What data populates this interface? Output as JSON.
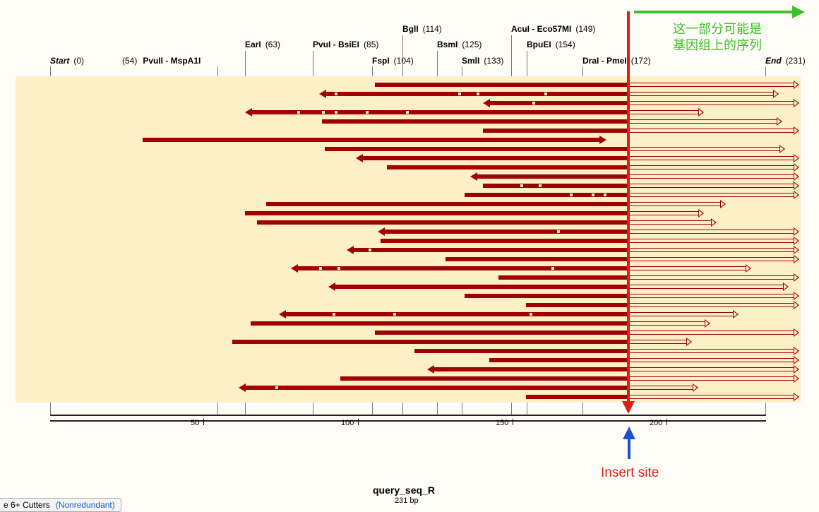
{
  "enzymes": {
    "start": {
      "name": "Start",
      "pos": "(0)"
    },
    "pvuii": {
      "pre": "(54)",
      "name": "PvuII - MspA1I"
    },
    "eari": {
      "name": "EarI",
      "pos": "(63)"
    },
    "pvui": {
      "name": "PvuI - BsiEI",
      "pos": "(85)"
    },
    "fspi": {
      "name": "FspI",
      "pos": "(104)"
    },
    "bgli": {
      "name": "BglI",
      "pos": "(114)"
    },
    "bsmi": {
      "name": "BsmI",
      "pos": "(125)"
    },
    "smli": {
      "name": "SmlI",
      "pos": "(133)"
    },
    "acui": {
      "name": "AcuI - Eco57MI",
      "pos": "(149)"
    },
    "bpuei": {
      "name": "BpuEI",
      "pos": "(154)"
    },
    "drai": {
      "name": "DraI - PmeI",
      "pos": "(172)"
    },
    "end": {
      "name": "End",
      "pos": "(231)"
    }
  },
  "ruler": {
    "ticks": [
      "50",
      "100",
      "150",
      "200"
    ]
  },
  "annotations": {
    "insert_site": "Insert site",
    "green_note_line1": "这一部分可能是",
    "green_note_line2": "基因组上的序列",
    "insert_color": "#d8201a",
    "blue_arrow_color": "#1f4fd0",
    "green_color": "#3fbf2c"
  },
  "sequence": {
    "name": "query_seq_R",
    "length": "231 bp"
  },
  "footer": {
    "cutters_label": "e 6+ Cutters",
    "nonredundant": "(Nonredundant)"
  },
  "colors": {
    "read": "#a00000",
    "track_bg": "#fdf0c9"
  }
}
